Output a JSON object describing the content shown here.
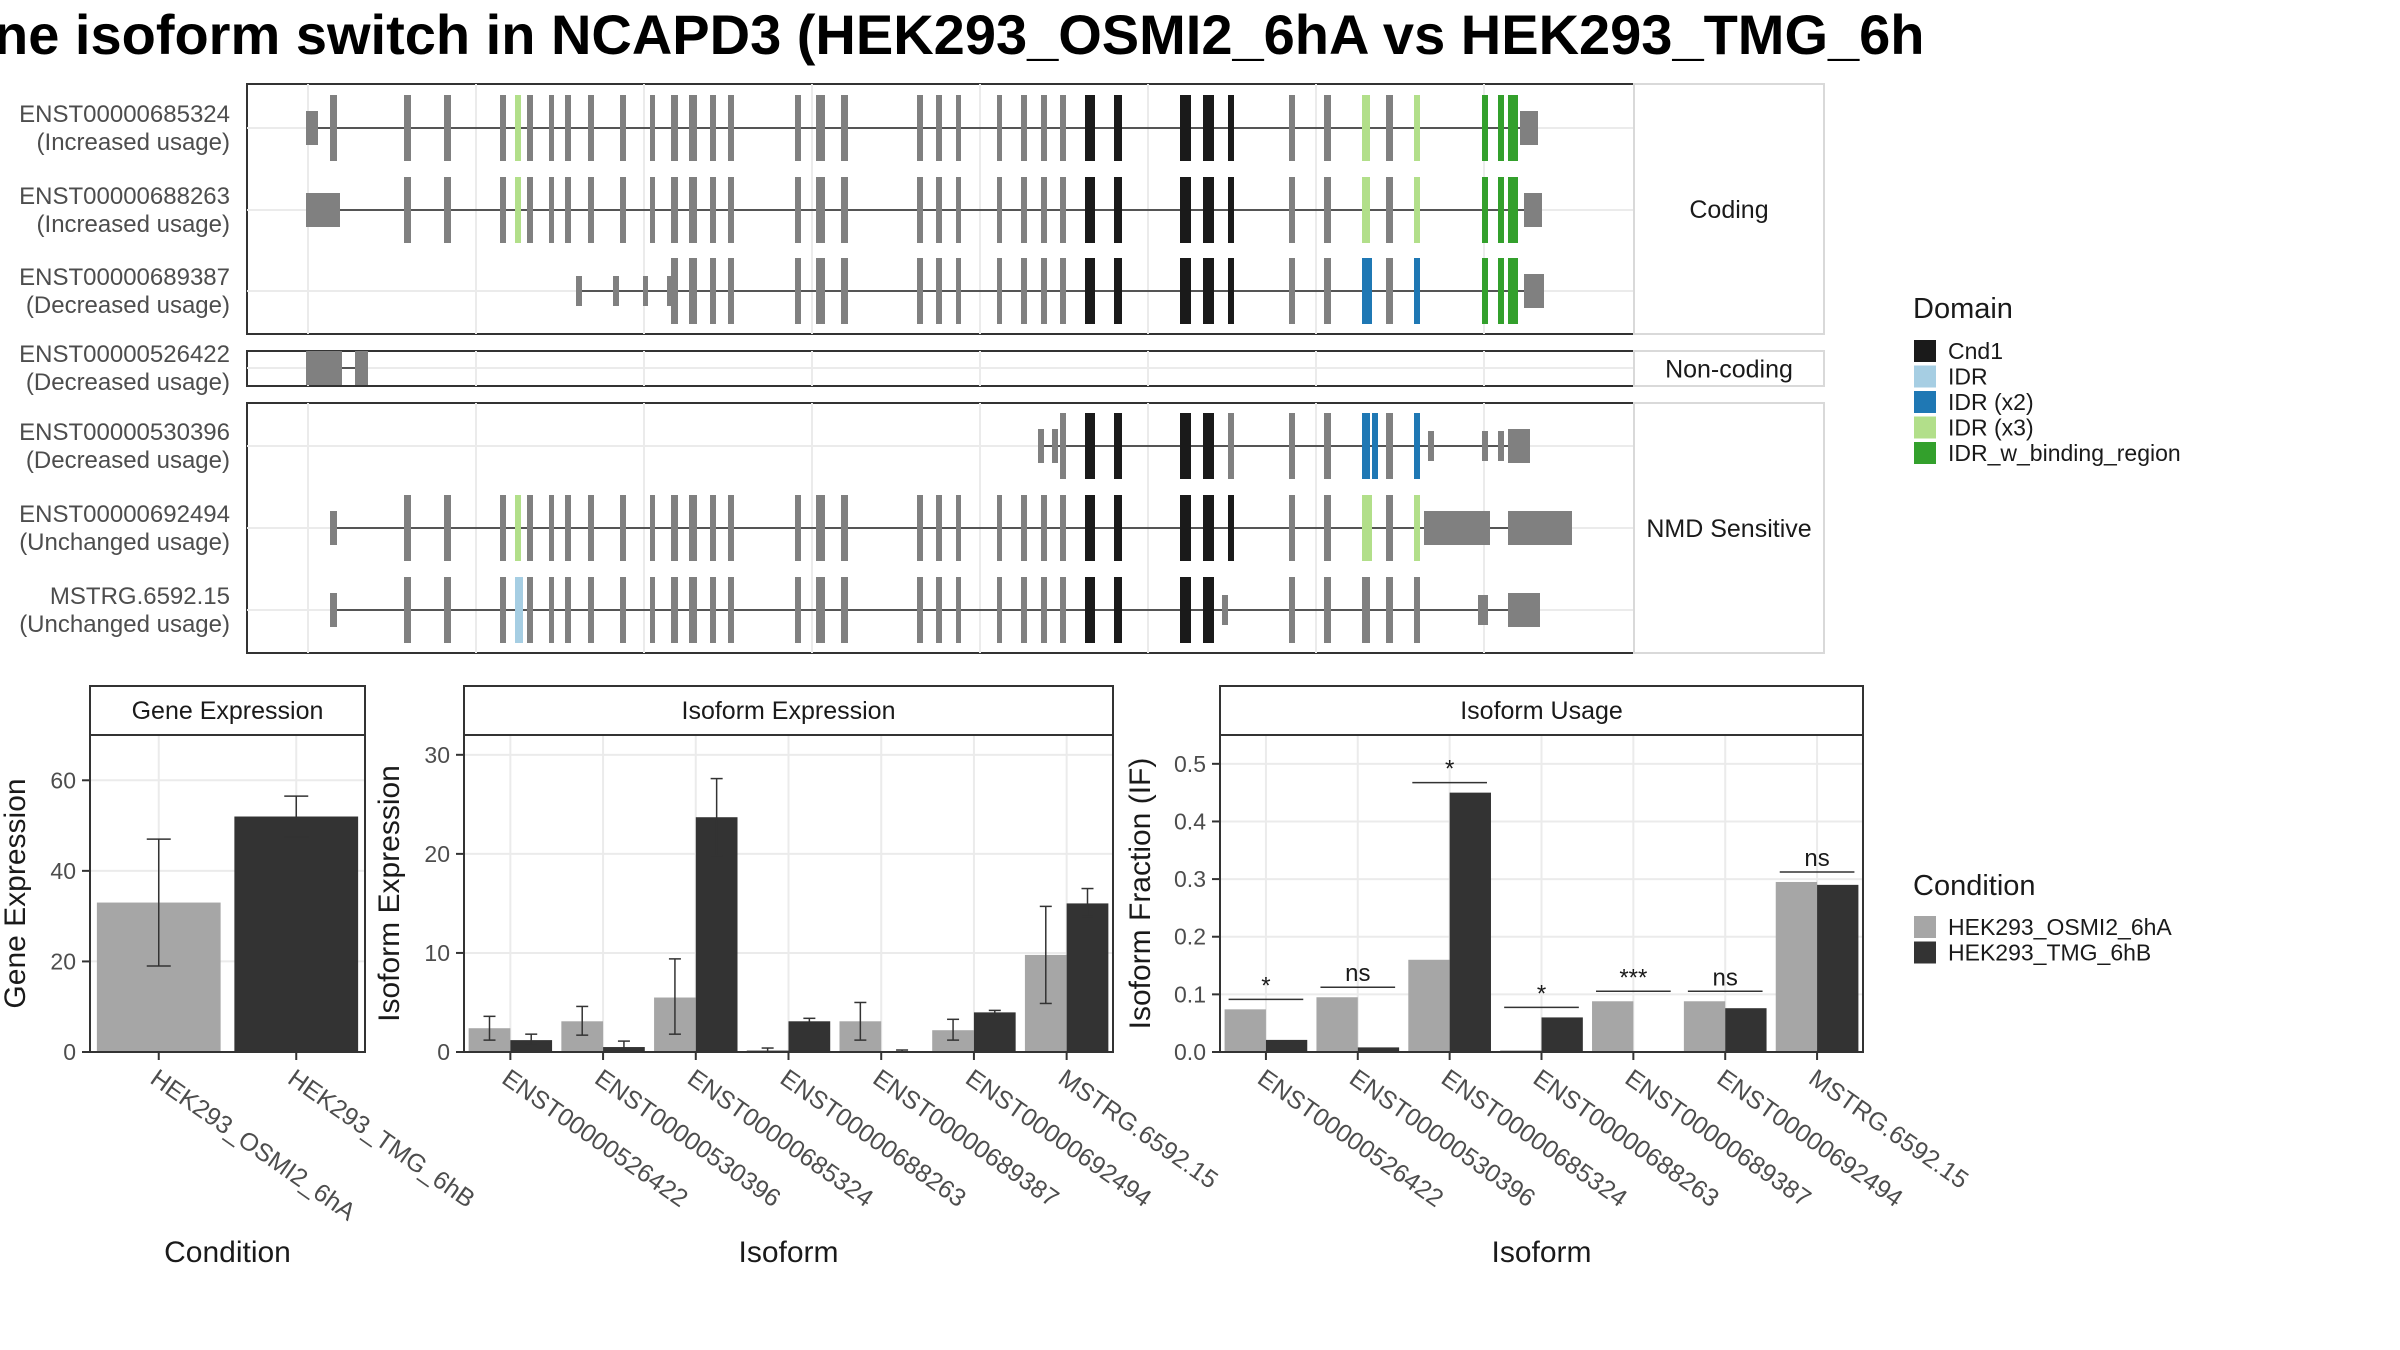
{
  "title": "ne isoform switch in NCAPD3 (HEK293_OSMI2_6hA vs HEK293_TMG_6h",
  "colors": {
    "Cnd1": "#1a1a1a",
    "IDR": "#a6cee3",
    "IDR (x2)": "#1f78b4",
    "IDR (x3)": "#b2df8a",
    "IDR_w_binding_region": "#33a02c",
    "exon": "#808080",
    "cond1": "#a6a6a6",
    "cond2": "#333333"
  },
  "structure": {
    "facets": [
      "Coding",
      "Non-coding",
      "NMD Sensitive"
    ],
    "transcripts": [
      {
        "id": "ENST00000685324",
        "usage": "(Increased usage)"
      },
      {
        "id": "ENST00000688263",
        "usage": "(Increased usage)"
      },
      {
        "id": "ENST00000689387",
        "usage": "(Decreased usage)"
      },
      {
        "id": "ENST00000526422",
        "usage": "(Decreased usage)"
      },
      {
        "id": "ENST00000530396",
        "usage": "(Decreased usage)"
      },
      {
        "id": "ENST00000692494",
        "usage": "(Unchanged usage)"
      },
      {
        "id": "MSTRG.6592.15",
        "usage": "(Unchanged usage)"
      }
    ]
  },
  "legend": {
    "domain_title": "Domain",
    "domains": [
      "Cnd1",
      "IDR",
      "IDR (x2)",
      "IDR (x3)",
      "IDR_w_binding_region"
    ],
    "condition_title": "Condition",
    "conditions": [
      "HEK293_OSMI2_6hA",
      "HEK293_TMG_6hB"
    ]
  },
  "chart_data": [
    {
      "type": "bar",
      "title": "Gene Expression",
      "xlabel": "Condition",
      "ylabel": "Gene Expression",
      "categories": [
        "HEK293_OSMI2_6hA",
        "HEK293_TMG_6hB"
      ],
      "values": [
        33,
        52
      ],
      "error_low": [
        19,
        47.5
      ],
      "error_high": [
        47,
        56.5
      ],
      "ylim": [
        0,
        70
      ],
      "yticks": [
        0,
        20,
        40,
        60
      ]
    },
    {
      "type": "bar",
      "title": "Isoform Expression",
      "xlabel": "Isoform",
      "ylabel": "Isoform Expression",
      "categories": [
        "ENST00000526422",
        "ENST00000530396",
        "ENST00000685324",
        "ENST00000688263",
        "ENST00000689387",
        "ENST00000692494",
        "MSTRG.6592.15"
      ],
      "series": [
        {
          "name": "HEK293_OSMI2_6hA",
          "values": [
            2.4,
            3.1,
            5.5,
            0.2,
            3.1,
            2.2,
            9.8
          ],
          "error_low": [
            1.2,
            1.7,
            1.8,
            0.0,
            1.2,
            1.2,
            4.9
          ],
          "error_high": [
            3.6,
            4.6,
            9.4,
            0.4,
            5.0,
            3.3,
            14.7
          ]
        },
        {
          "name": "HEK293_TMG_6hB",
          "values": [
            1.2,
            0.5,
            23.7,
            3.1,
            0.1,
            4.0,
            15.0
          ],
          "error_low": [
            0.7,
            0.1,
            19.8,
            2.8,
            0.0,
            3.8,
            13.7
          ],
          "error_high": [
            1.8,
            1.1,
            27.6,
            3.4,
            0.2,
            4.2,
            16.5
          ]
        }
      ],
      "ylim": [
        0,
        32
      ],
      "yticks": [
        0,
        10,
        20,
        30
      ]
    },
    {
      "type": "bar",
      "title": "Isoform Usage",
      "xlabel": "Isoform",
      "ylabel": "Isoform Fraction (IF)",
      "categories": [
        "ENST00000526422",
        "ENST00000530396",
        "ENST00000685324",
        "ENST00000688263",
        "ENST00000689387",
        "ENST00000692494",
        "MSTRG.6592.15"
      ],
      "series": [
        {
          "name": "HEK293_OSMI2_6hA",
          "values": [
            0.074,
            0.095,
            0.16,
            0.003,
            0.088,
            0.088,
            0.295
          ]
        },
        {
          "name": "HEK293_TMG_6hB",
          "values": [
            0.021,
            0.008,
            0.45,
            0.06,
            0.001,
            0.076,
            0.29
          ]
        }
      ],
      "significance": [
        "*",
        "ns",
        "*",
        "*",
        "***",
        "ns",
        "ns"
      ],
      "ylim": [
        0,
        0.55
      ],
      "yticks": [
        0.0,
        0.1,
        0.2,
        0.3,
        0.4,
        0.5
      ],
      "ytick_labels": [
        "0.0",
        "0.1",
        "0.2",
        "0.3",
        "0.4",
        "0.5"
      ]
    }
  ]
}
